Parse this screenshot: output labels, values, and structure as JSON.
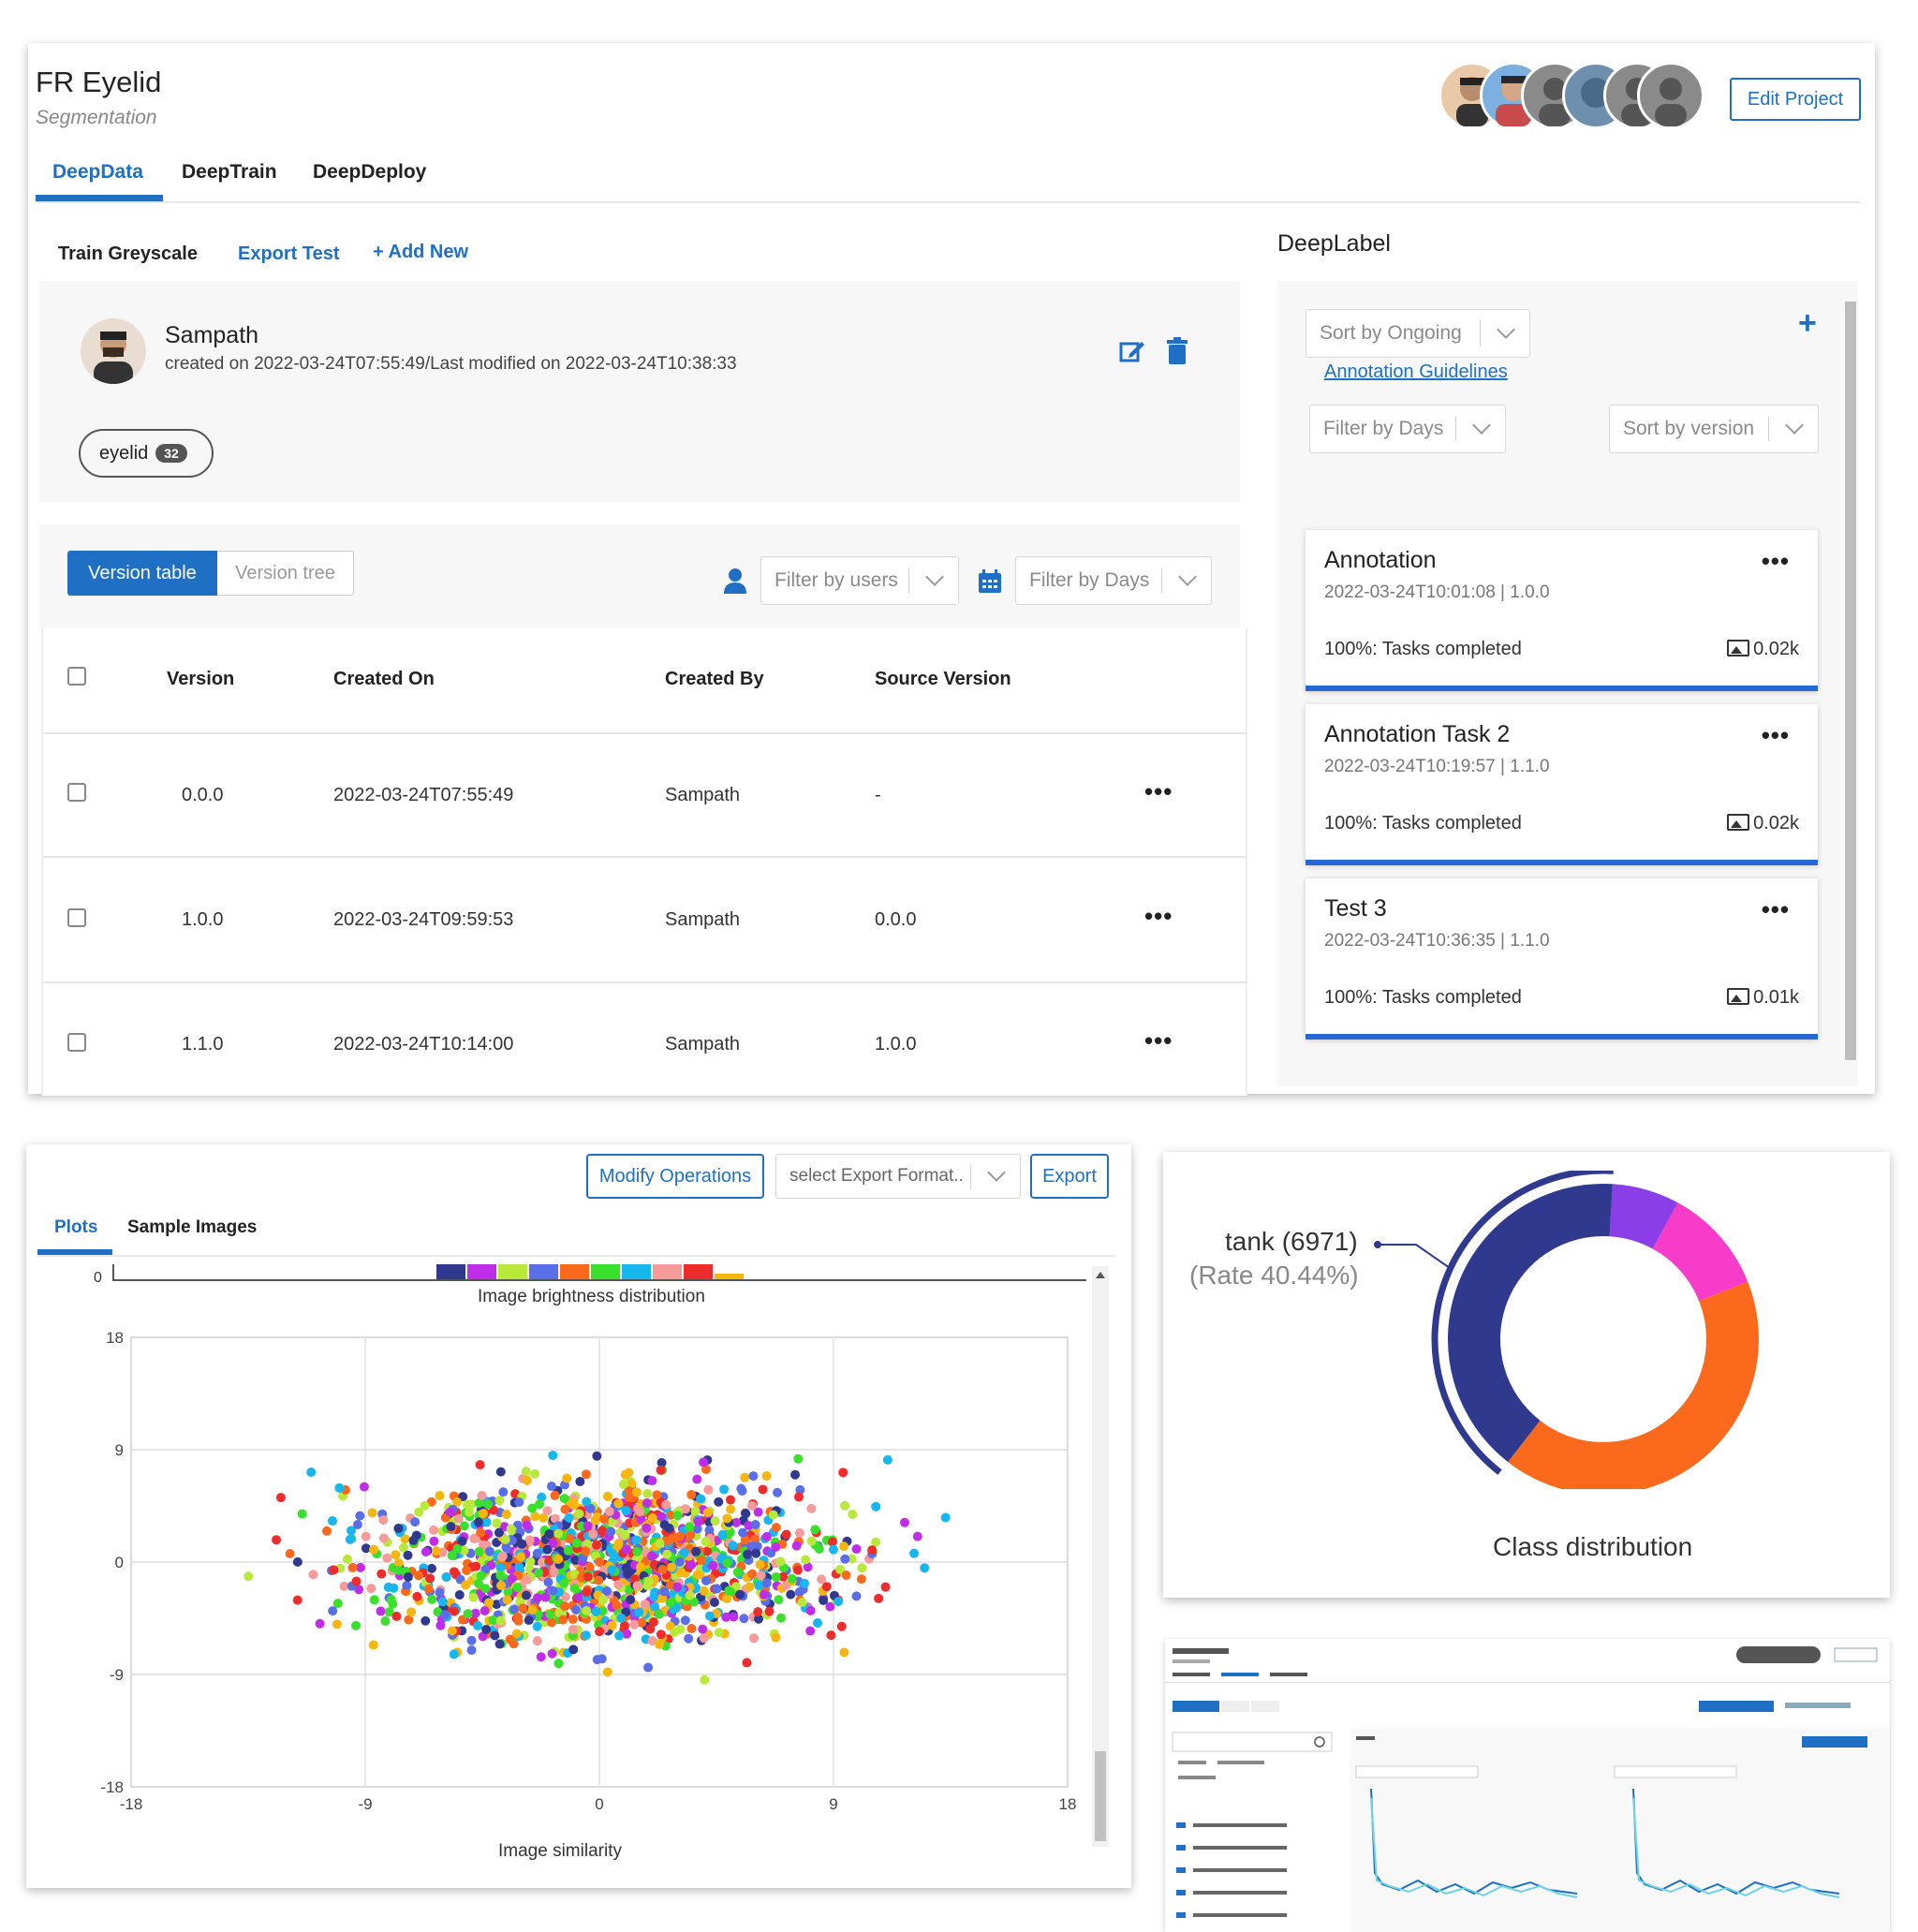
{
  "project": {
    "title": "FR Eyelid",
    "subtitle": "Segmentation",
    "edit_label": "Edit Project"
  },
  "main_tabs": [
    {
      "label": "DeepData",
      "active": true
    },
    {
      "label": "DeepTrain",
      "active": false
    },
    {
      "label": "DeepDeploy",
      "active": false
    }
  ],
  "dataset_tabs": {
    "train": "Train Greyscale",
    "export": "Export Test",
    "add_new": "+ Add New"
  },
  "dataset_info": {
    "owner": "Sampath",
    "meta": "created on 2022-03-24T07:55:49/Last modified on 2022-03-24T10:38:33",
    "tag_label": "eyelid",
    "tag_count": "32"
  },
  "version_toggle": {
    "table": "Version table",
    "tree": "Version tree"
  },
  "filters": {
    "users": "Filter by users",
    "days": "Filter by Days"
  },
  "version_table": {
    "headers": [
      "Version",
      "Created On",
      "Created By",
      "Source Version"
    ],
    "rows": [
      {
        "version": "0.0.0",
        "created_on": "2022-03-24T07:55:49",
        "created_by": "Sampath",
        "source": "-"
      },
      {
        "version": "1.0.0",
        "created_on": "2022-03-24T09:59:53",
        "created_by": "Sampath",
        "source": "0.0.0"
      },
      {
        "version": "1.1.0",
        "created_on": "2022-03-24T10:14:00",
        "created_by": "Sampath",
        "source": "1.0.0"
      }
    ]
  },
  "deeplabel": {
    "title": "DeepLabel",
    "sort_ongoing": "Sort by Ongoing",
    "guidelines": "Annotation Guidelines",
    "filter_days": "Filter by Days",
    "sort_version": "Sort by version",
    "tasks": [
      {
        "name": "Annotation",
        "meta": "2022-03-24T10:01:08 | 1.0.0",
        "progress": "100%: Tasks completed",
        "count": "0.02k"
      },
      {
        "name": "Annotation Task 2",
        "meta": "2022-03-24T10:19:57 | 1.1.0",
        "progress": "100%: Tasks completed",
        "count": "0.02k"
      },
      {
        "name": "Test 3",
        "meta": "2022-03-24T10:36:35 | 1.1.0",
        "progress": "100%: Tasks completed",
        "count": "0.01k"
      }
    ]
  },
  "plots_panel": {
    "modify": "Modify Operations",
    "export_format": "select Export Format..",
    "export": "Export",
    "tabs": [
      "Plots",
      "Sample Images"
    ],
    "brightness_label": "Image brightness distribution",
    "brightness_zero": "0",
    "brightness_colors": [
      "#2f3a8f",
      "#c02de8",
      "#b8e93a",
      "#5a6ee8",
      "#fb6a1c",
      "#3ae02b",
      "#17b6ef",
      "#f79a9a",
      "#ee2c2c",
      "#f6b60f"
    ]
  },
  "chart_data": [
    {
      "type": "scatter",
      "xlabel": "Image similarity",
      "xlim": [
        -18,
        18
      ],
      "ylim": [
        -18,
        18
      ],
      "xticks": [
        "-18",
        "-9",
        "0",
        "9",
        "18"
      ],
      "yticks": [
        "18",
        "9",
        "0",
        "-9",
        "-18"
      ],
      "point_colors": [
        "#2f3a8f",
        "#c02de8",
        "#b8e93a",
        "#5a6ee8",
        "#fb6a1c",
        "#3ae02b",
        "#17b6ef",
        "#f79a9a",
        "#ee2c2c",
        "#f6b60f"
      ],
      "points": [
        [
          -2,
          1
        ],
        [
          3,
          -2
        ],
        [
          -5,
          4
        ],
        [
          6,
          3
        ],
        [
          0,
          0
        ],
        [
          -8,
          -3
        ],
        [
          9,
          1
        ],
        [
          -11,
          -1
        ],
        [
          11,
          -2
        ],
        [
          1,
          7
        ],
        [
          -1,
          -7
        ],
        [
          4,
          8
        ]
      ]
    },
    {
      "type": "pie",
      "title": "Class distribution",
      "highlight_label": "tank (6971)",
      "highlight_rate": "(Rate 40.44%)",
      "slices": [
        {
          "name": "tank",
          "value": 40.44,
          "color": "#2f3a8f"
        },
        {
          "name": "",
          "value": 7,
          "color": "#8a3ee8"
        },
        {
          "name": "",
          "value": 11,
          "color": "#f63cc8"
        },
        {
          "name": "",
          "value": 41.56,
          "color": "#fb6a1c"
        }
      ]
    }
  ]
}
